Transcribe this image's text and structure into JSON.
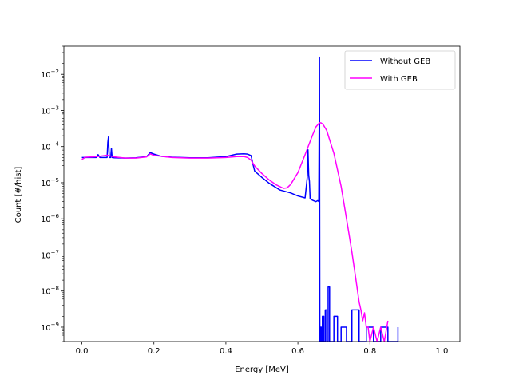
{
  "chart_data": {
    "type": "line",
    "xlabel": "Energy [MeV]",
    "ylabel": "Count [#/hist]",
    "yscale": "log",
    "xlim": [
      -0.05,
      1.05
    ],
    "ylim": [
      4e-10,
      0.06
    ],
    "x_ticks": [
      0.0,
      0.2,
      0.4,
      0.6,
      0.8,
      1.0
    ],
    "x_tick_labels": [
      "0.0",
      "0.2",
      "0.4",
      "0.6",
      "0.8",
      "1.0"
    ],
    "y_ticks": [
      1e-09,
      1e-08,
      1e-07,
      1e-06,
      1e-05,
      0.0001,
      0.001,
      0.01
    ],
    "y_tick_labels": [
      "10-9",
      "10-8",
      "10-7",
      "10-6",
      "10-5",
      "10-4",
      "10-3",
      "10-2"
    ],
    "grid": false,
    "legend_position": "top-right",
    "series": [
      {
        "name": "Without GEB",
        "color": "#0000ff",
        "x": [
          0.0,
          0.02,
          0.04,
          0.045,
          0.05,
          0.07,
          0.072,
          0.074,
          0.076,
          0.08,
          0.082,
          0.084,
          0.09,
          0.12,
          0.15,
          0.18,
          0.19,
          0.2,
          0.22,
          0.25,
          0.3,
          0.35,
          0.4,
          0.43,
          0.45,
          0.46,
          0.47,
          0.475,
          0.48,
          0.5,
          0.52,
          0.55,
          0.58,
          0.6,
          0.62,
          0.626,
          0.628,
          0.63,
          0.632,
          0.634,
          0.64,
          0.65,
          0.655,
          0.658,
          0.66,
          0.661,
          0.662,
          0.662,
          0.665,
          0.665,
          0.668,
          0.668,
          0.672,
          0.672,
          0.676,
          0.676,
          0.68,
          0.68,
          0.684,
          0.684,
          0.688,
          0.688,
          0.7,
          0.7,
          0.71,
          0.71,
          0.72,
          0.72,
          0.735,
          0.735,
          0.75,
          0.75,
          0.77,
          0.77,
          0.79,
          0.79,
          0.81,
          0.81,
          0.83,
          0.83,
          0.85,
          0.85,
          0.878,
          0.878
        ],
        "y": [
          5e-05,
          5e-05,
          5e-05,
          6e-05,
          5e-05,
          5e-05,
          0.00013,
          0.00019,
          5e-05,
          5e-05,
          9e-05,
          5e-05,
          4.9e-05,
          4.8e-05,
          4.9e-05,
          5.3e-05,
          6.8e-05,
          6.2e-05,
          5.4e-05,
          5.1e-05,
          4.9e-05,
          4.9e-05,
          5.3e-05,
          6.2e-05,
          6.3e-05,
          6.2e-05,
          5.6e-05,
          3.3e-05,
          2.1e-05,
          1.4e-05,
          9.7e-06,
          6.3e-06,
          5.2e-06,
          4.3e-06,
          3.8e-06,
          1.4e-05,
          8.2e-05,
          1.6e-05,
          1.1e-05,
          3.6e-06,
          3.3e-06,
          3e-06,
          3.2e-06,
          3e-06,
          0.03,
          4e-10,
          4e-10,
          1e-09,
          1e-09,
          4e-10,
          4e-10,
          2e-09,
          2e-09,
          4e-10,
          4e-10,
          3e-09,
          3e-09,
          4e-10,
          4e-10,
          1.3e-08,
          1.3e-08,
          4e-10,
          4e-10,
          2e-09,
          2e-09,
          4e-10,
          4e-10,
          1e-09,
          1e-09,
          4e-10,
          4e-10,
          3e-09,
          3e-09,
          4e-10,
          4e-10,
          1e-09,
          1e-09,
          4e-10,
          4e-10,
          1e-09,
          1e-09,
          4e-10,
          4e-10,
          1e-09
        ]
      },
      {
        "name": "With GEB",
        "color": "#ff00ff",
        "x": [
          0.0,
          0.01,
          0.03,
          0.05,
          0.07,
          0.09,
          0.12,
          0.15,
          0.18,
          0.19,
          0.2,
          0.25,
          0.3,
          0.35,
          0.4,
          0.43,
          0.45,
          0.46,
          0.47,
          0.48,
          0.5,
          0.52,
          0.54,
          0.56,
          0.57,
          0.58,
          0.6,
          0.62,
          0.64,
          0.65,
          0.66,
          0.665,
          0.67,
          0.68,
          0.7,
          0.72,
          0.74,
          0.75,
          0.76,
          0.77,
          0.775,
          0.78,
          0.785,
          0.79,
          0.795,
          0.8,
          0.81,
          0.82,
          0.83,
          0.84,
          0.85
        ],
        "y": [
          4.4e-05,
          5.1e-05,
          5.2e-05,
          5.4e-05,
          5.8e-05,
          5.2e-05,
          4.8e-05,
          4.8e-05,
          5.2e-05,
          6.3e-05,
          5.7e-05,
          5e-05,
          4.8e-05,
          4.8e-05,
          5e-05,
          5.3e-05,
          5.3e-05,
          5e-05,
          4.2e-05,
          2.9e-05,
          1.8e-05,
          1.2e-05,
          8.7e-06,
          7e-06,
          7.2e-06,
          9e-06,
          1.9e-05,
          6e-05,
          0.0002,
          0.00035,
          0.00046,
          0.00045,
          0.00041,
          0.00028,
          6.5e-05,
          8e-06,
          5e-07,
          1.2e-07,
          2.5e-08,
          5e-09,
          3e-09,
          1.5e-09,
          2.5e-09,
          1e-09,
          1e-09,
          4e-10,
          1e-09,
          4e-10,
          1e-09,
          4e-10,
          1.5e-09
        ]
      }
    ]
  }
}
